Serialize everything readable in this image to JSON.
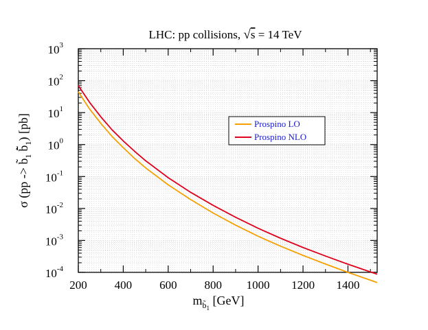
{
  "chart_data": {
    "type": "line",
    "title": "LHC: pp collisions, √s = 14 TeV",
    "title_parts": {
      "prefix": "LHC: pp collisions, ",
      "root_symbol": "√",
      "root_arg": "s",
      "suffix": " = 14 TeV"
    },
    "xlabel": "m_{b̃1} [GeV]",
    "xlabel_parts": {
      "main": "m",
      "sub": "b̃",
      "subsub": "1",
      "unit": " [GeV]"
    },
    "ylabel": "σ (pp -> b̃1 b̃̄1) [pb]",
    "ylabel_parts": {
      "p1": "σ (pp -> ",
      "b1": "b̃",
      "s1": "1",
      "b2": "b̃̄",
      "s2": "1",
      "p2": ") [pb]"
    },
    "xlim": [
      200,
      1530
    ],
    "ylim": [
      0.0001,
      1000
    ],
    "yscale": "log",
    "grid": true,
    "legend_position": "right",
    "x_ticks": [
      200,
      400,
      600,
      800,
      1000,
      1200,
      1400
    ],
    "x_tick_labels": [
      "200",
      "400",
      "600",
      "800",
      "1000",
      "1200",
      "1400"
    ],
    "y_ticks": [
      {
        "base": "10",
        "exp": "-4"
      },
      {
        "base": "10",
        "exp": "-3"
      },
      {
        "base": "10",
        "exp": "-2"
      },
      {
        "base": "10",
        "exp": "-1"
      },
      {
        "base": "10",
        "exp": "0"
      },
      {
        "base": "10",
        "exp": "1"
      },
      {
        "base": "10",
        "exp": "2"
      },
      {
        "base": "10",
        "exp": "3"
      }
    ],
    "series": [
      {
        "name": "Prospino LO",
        "color": "#f5a000",
        "x": [
          200,
          250,
          300,
          350,
          400,
          450,
          500,
          600,
          700,
          800,
          900,
          1000,
          1100,
          1200,
          1300,
          1400,
          1500,
          1530
        ],
        "y": [
          45,
          13,
          4.6,
          1.8,
          0.8,
          0.37,
          0.185,
          0.055,
          0.019,
          0.0072,
          0.003,
          0.00135,
          0.00066,
          0.00034,
          0.000182,
          0.0001,
          5.7e-05,
          4.8e-05
        ]
      },
      {
        "name": "Prospino NLO",
        "color": "#e0001b",
        "x": [
          200,
          250,
          300,
          350,
          400,
          450,
          500,
          600,
          700,
          800,
          900,
          1000,
          1100,
          1200,
          1300,
          1400,
          1500,
          1530
        ],
        "y": [
          70,
          21,
          7.4,
          2.9,
          1.3,
          0.62,
          0.31,
          0.092,
          0.032,
          0.0125,
          0.0053,
          0.0024,
          0.00117,
          0.0006,
          0.000324,
          0.00018,
          0.000103,
          8.8e-05
        ]
      }
    ]
  }
}
